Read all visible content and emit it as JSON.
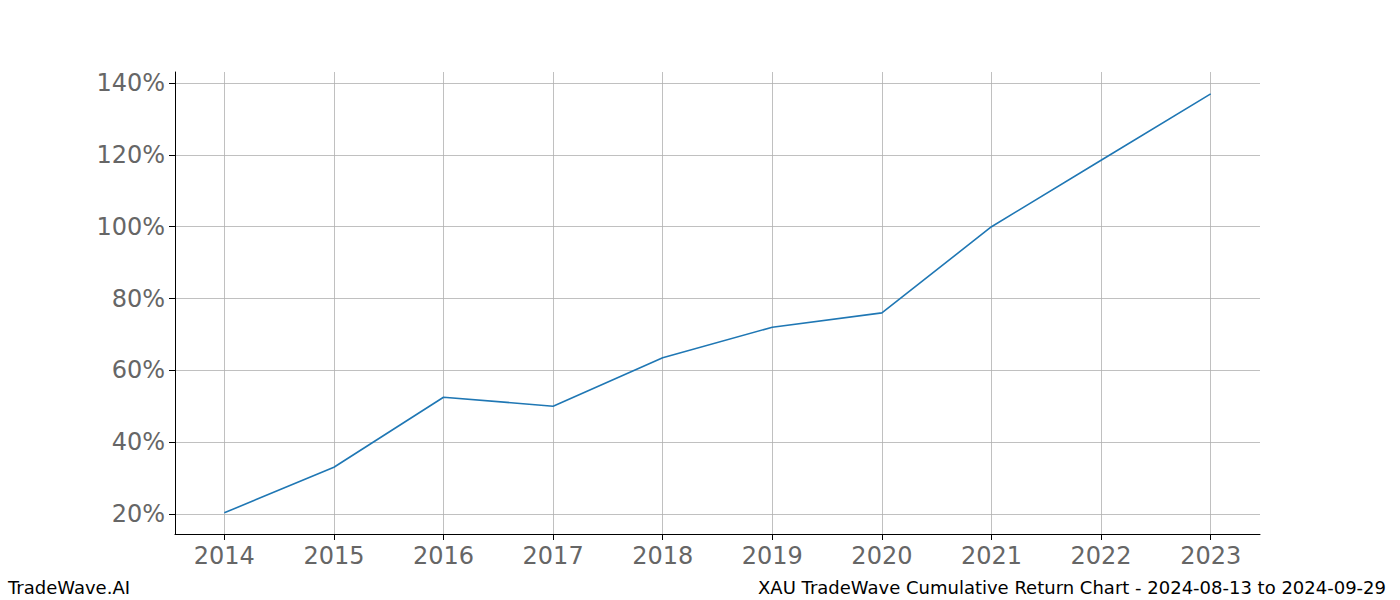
{
  "chart_data": {
    "type": "line",
    "title": "XAU TradeWave Cumulative Return Chart - 2024-08-13 to 2024-09-29",
    "annotations": [
      "TradeWave.AI"
    ],
    "x": [
      2014,
      2015,
      2016,
      2017,
      2018,
      2019,
      2020,
      2021,
      2022,
      2023
    ],
    "values": [
      20.3,
      33.0,
      52.5,
      50.0,
      63.5,
      72.0,
      76.0,
      100.0,
      118.5,
      137.0
    ],
    "color": "#1f77b4",
    "xlim": [
      2013.55,
      2023.45
    ],
    "xticks": [
      2014,
      2015,
      2016,
      2017,
      2018,
      2019,
      2020,
      2021,
      2022,
      2023
    ],
    "ylim": [
      14.4,
      143.1
    ],
    "yticks": [
      {
        "value": 20,
        "label": "20%"
      },
      {
        "value": 40,
        "label": "40%"
      },
      {
        "value": 60,
        "label": "60%"
      },
      {
        "value": 80,
        "label": "80%"
      },
      {
        "value": 100,
        "label": "100%"
      },
      {
        "value": 120,
        "label": "120%"
      },
      {
        "value": 140,
        "label": "140%"
      }
    ],
    "grid": true
  }
}
